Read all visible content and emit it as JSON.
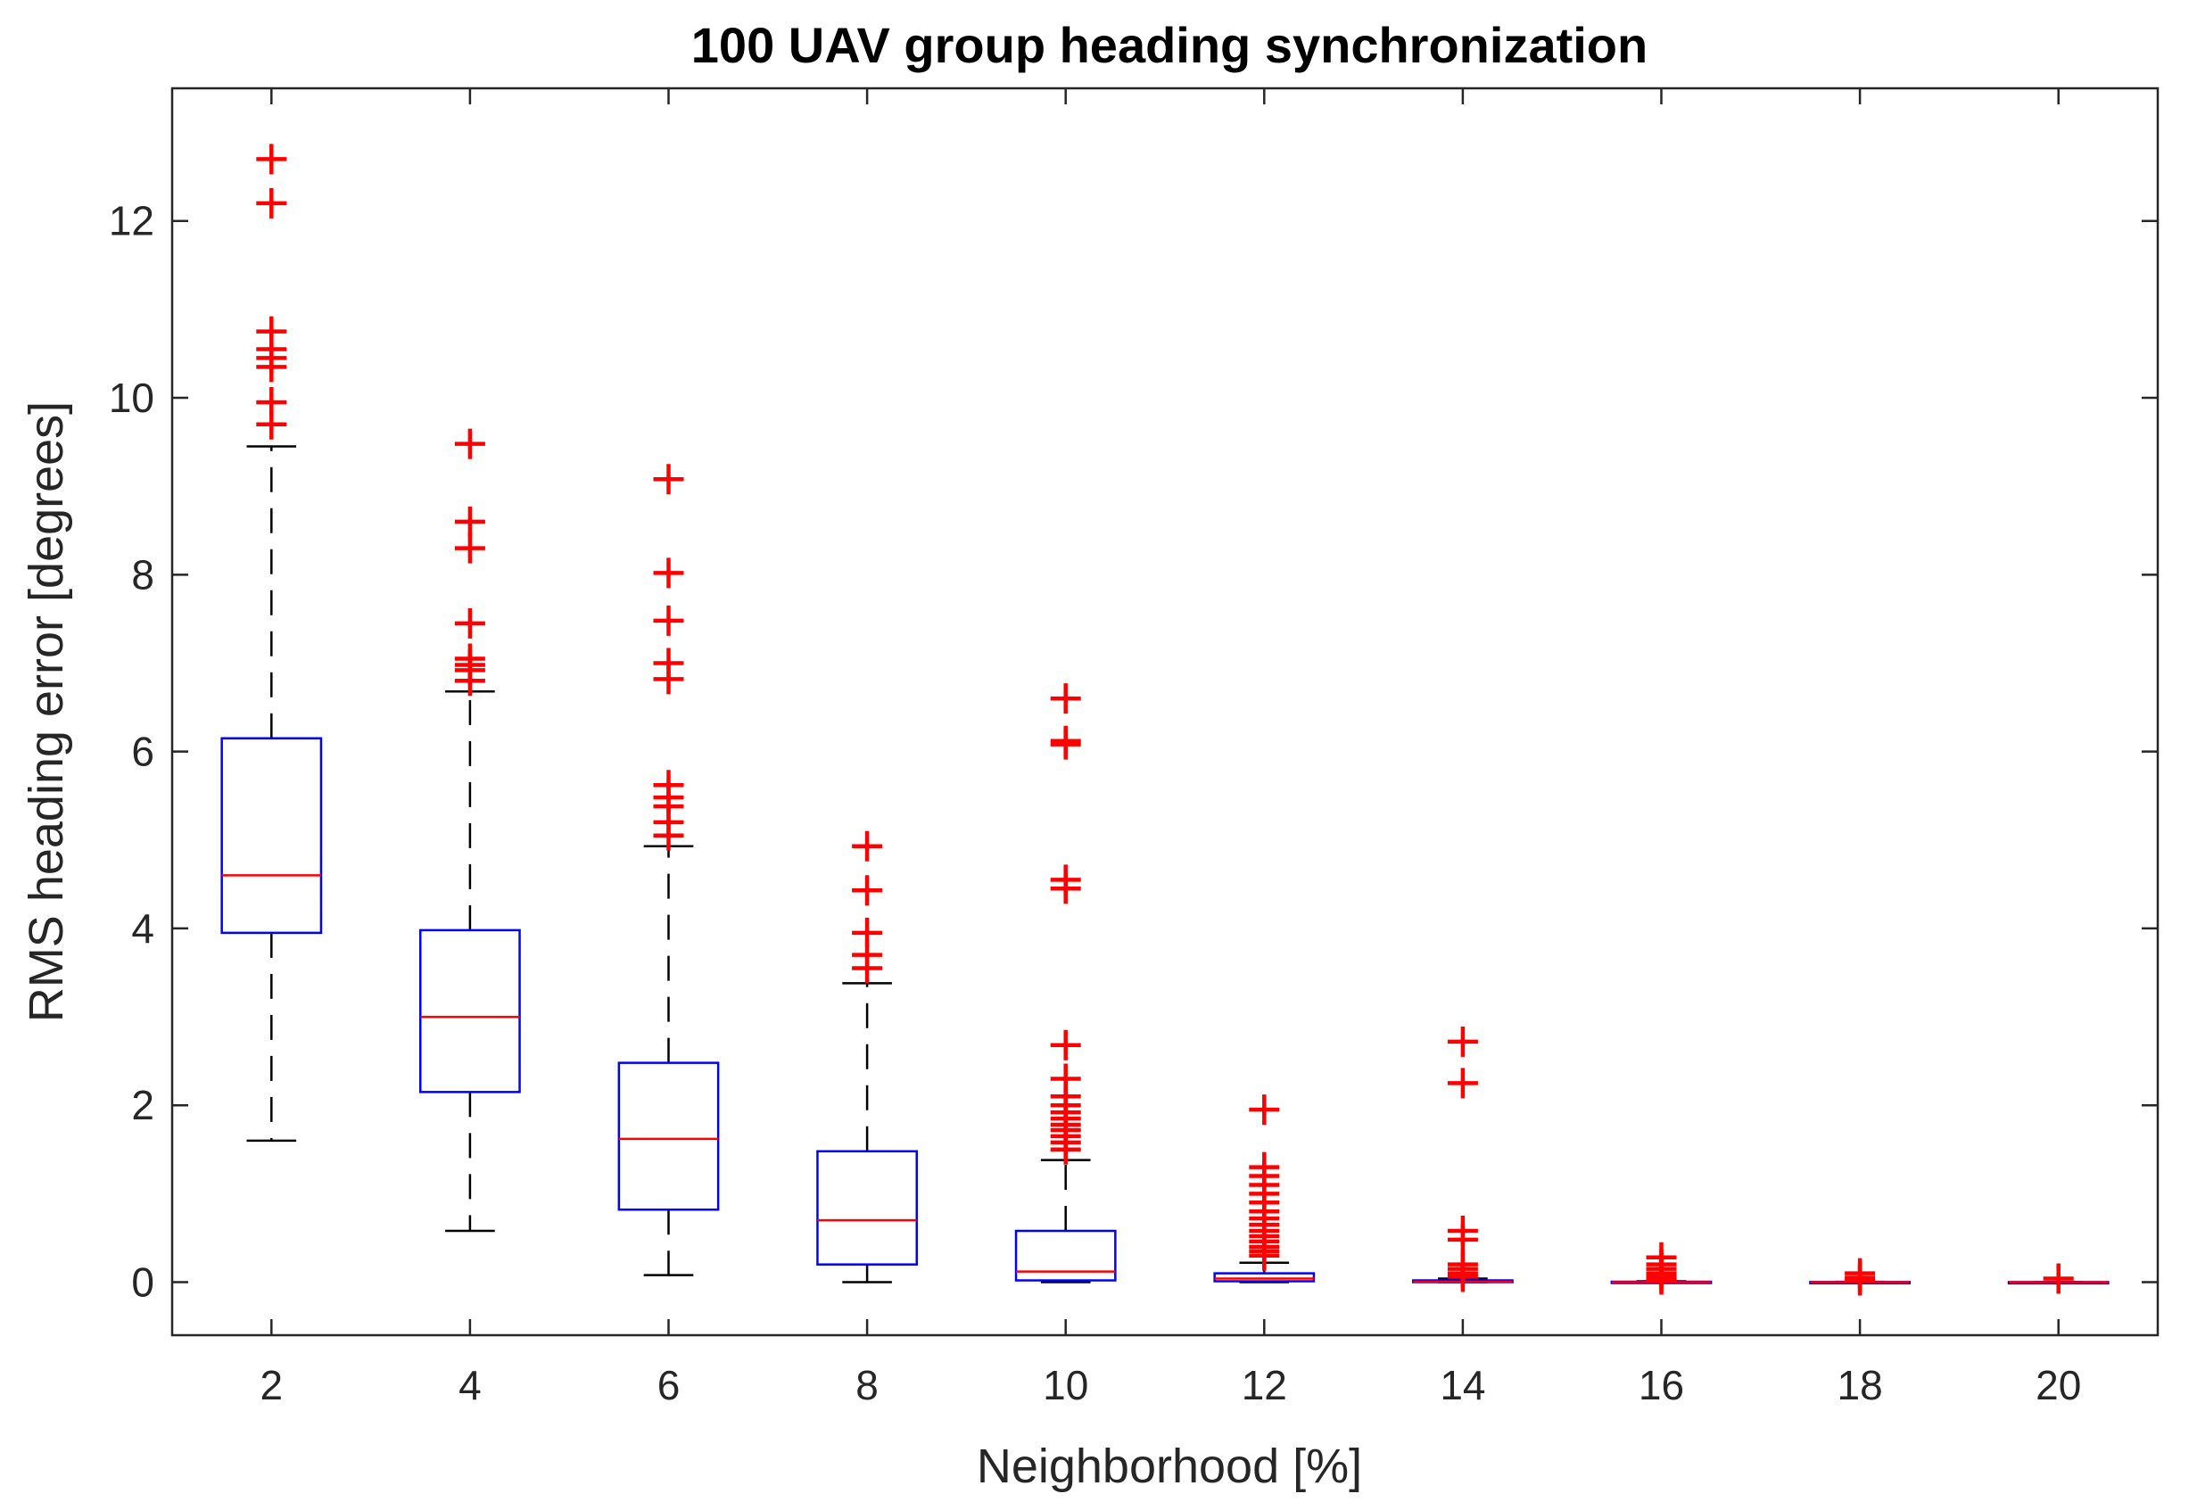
{
  "chart_data": {
    "type": "boxplot",
    "title": "100 UAV group heading synchronization",
    "xlabel": "Neighborhood [%]",
    "ylabel": "RMS heading error [degrees]",
    "categories": [
      "2",
      "4",
      "6",
      "8",
      "10",
      "12",
      "14",
      "16",
      "18",
      "20"
    ],
    "ylim": [
      -0.6,
      13.5
    ],
    "yticks": [
      0,
      2,
      4,
      6,
      8,
      10,
      12
    ],
    "ytick_labels": [
      "0",
      "2",
      "4",
      "6",
      "8",
      "10",
      "12"
    ],
    "colors": {
      "box": "#0000FF",
      "median": "#FF0000",
      "whisker": "#000000",
      "outlier": "#FF0000",
      "axes": "#262626"
    },
    "series": [
      {
        "name": "2",
        "whisker_low": 1.6,
        "q1": 3.95,
        "median": 4.6,
        "q3": 6.15,
        "whisker_high": 9.45,
        "outliers": [
          12.7,
          12.2,
          10.75,
          10.55,
          10.45,
          10.35,
          9.95,
          9.7
        ]
      },
      {
        "name": "4",
        "whisker_low": 0.58,
        "q1": 2.15,
        "median": 3.0,
        "q3": 3.98,
        "whisker_high": 6.68,
        "outliers": [
          9.48,
          8.6,
          8.3,
          7.45,
          7.05,
          6.98,
          6.92,
          6.8
        ]
      },
      {
        "name": "6",
        "whisker_low": 0.08,
        "q1": 0.82,
        "median": 1.62,
        "q3": 2.48,
        "whisker_high": 4.93,
        "outliers": [
          9.08,
          8.02,
          7.48,
          7.0,
          6.82,
          5.62,
          5.48,
          5.38,
          5.2,
          5.05
        ]
      },
      {
        "name": "8",
        "whisker_low": 0.0,
        "q1": 0.2,
        "median": 0.7,
        "q3": 1.48,
        "whisker_high": 3.38,
        "outliers": [
          4.93,
          4.43,
          3.95,
          3.7,
          3.55
        ]
      },
      {
        "name": "10",
        "whisker_low": 0.0,
        "q1": 0.02,
        "median": 0.12,
        "q3": 0.58,
        "whisker_high": 1.38,
        "outliers": [
          6.6,
          6.12,
          6.08,
          4.55,
          4.45,
          2.68,
          2.3,
          2.1,
          2.0,
          1.92,
          1.85,
          1.78,
          1.72,
          1.65,
          1.58,
          1.5
        ]
      },
      {
        "name": "12",
        "whisker_low": 0.0,
        "q1": 0.01,
        "median": 0.04,
        "q3": 0.1,
        "whisker_high": 0.22,
        "outliers": [
          1.95,
          1.3,
          1.2,
          1.1,
          1.0,
          0.9,
          0.8,
          0.72,
          0.65,
          0.58,
          0.52,
          0.46,
          0.4,
          0.35,
          0.3
        ]
      },
      {
        "name": "14",
        "whisker_low": 0.0,
        "q1": 0.0,
        "median": 0.005,
        "q3": 0.02,
        "whisker_high": 0.04,
        "outliers": [
          2.72,
          2.25,
          0.58,
          0.48,
          0.2,
          0.15,
          0.1,
          0.06
        ]
      },
      {
        "name": "16",
        "whisker_low": 0.0,
        "q1": 0.0,
        "median": 0.0,
        "q3": 0.005,
        "whisker_high": 0.01,
        "outliers": [
          0.28,
          0.2,
          0.15,
          0.1,
          0.06,
          0.03
        ]
      },
      {
        "name": "18",
        "whisker_low": 0.0,
        "q1": 0.0,
        "median": 0.0,
        "q3": 0.002,
        "whisker_high": 0.004,
        "outliers": [
          0.1,
          0.05,
          0.02
        ]
      },
      {
        "name": "20",
        "whisker_low": 0.0,
        "q1": 0.0,
        "median": 0.0,
        "q3": 0.001,
        "whisker_high": 0.002,
        "outliers": [
          0.04
        ]
      }
    ]
  }
}
